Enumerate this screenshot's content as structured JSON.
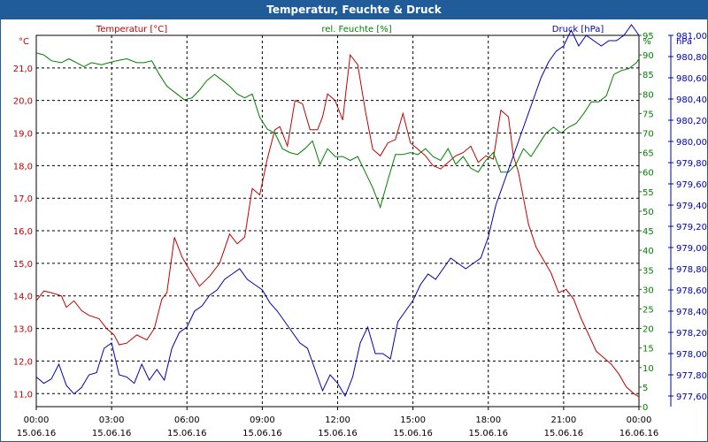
{
  "window": {
    "title": "Temperatur, Feuchte & Druck"
  },
  "colors": {
    "temperature": "#c00000",
    "humidity": "#008000",
    "pressure": "#0000b0",
    "titlebar": "#1f5c99",
    "grid": "#000000",
    "axis_text": "#000000"
  },
  "chart_data": {
    "type": "line",
    "title": "Temperatur, Feuchte & Druck",
    "x_start_label": [
      "00:00",
      "15.06.16"
    ],
    "x_ticks": [
      {
        "time": "00:00",
        "date": "15.06.16",
        "hour": 0
      },
      {
        "time": "03:00",
        "date": "15.06.16",
        "hour": 3
      },
      {
        "time": "06:00",
        "date": "15.06.16",
        "hour": 6
      },
      {
        "time": "09:00",
        "date": "15.06.16",
        "hour": 9
      },
      {
        "time": "12:00",
        "date": "15.06.16",
        "hour": 12
      },
      {
        "time": "15:00",
        "date": "15.06.16",
        "hour": 15
      },
      {
        "time": "18:00",
        "date": "15.06.16",
        "hour": 18
      },
      {
        "time": "21:00",
        "date": "15.06.16",
        "hour": 21
      },
      {
        "time": "00:00",
        "date": "16.06.16",
        "hour": 24
      }
    ],
    "xlim": [
      0,
      24
    ],
    "axes": {
      "temperature": {
        "unit": "°C",
        "label": "Temperatur [°C]",
        "ylim": [
          10.6,
          22.0
        ],
        "ticks": [
          "11,0",
          "12,0",
          "13,0",
          "14,0",
          "15,0",
          "16,0",
          "17,0",
          "18,0",
          "19,0",
          "20,0",
          "21,0"
        ],
        "tick_values": [
          11,
          12,
          13,
          14,
          15,
          16,
          17,
          18,
          19,
          20,
          21
        ]
      },
      "humidity": {
        "unit": "%",
        "label": "rel. Feuchte [%]",
        "ylim": [
          0,
          95
        ],
        "ticks": [
          "0",
          "5",
          "10",
          "15",
          "20",
          "25",
          "30",
          "35",
          "40",
          "45",
          "50",
          "55",
          "60",
          "65",
          "70",
          "75",
          "80",
          "85",
          "90",
          "95"
        ],
        "tick_values": [
          0,
          5,
          10,
          15,
          20,
          25,
          30,
          35,
          40,
          45,
          50,
          55,
          60,
          65,
          70,
          75,
          80,
          85,
          90,
          95
        ]
      },
      "pressure": {
        "unit": "hPa",
        "label": "Druck [hPa]",
        "ylim": [
          977.5,
          981.0
        ],
        "ticks": [
          "977,60",
          "977,80",
          "978,00",
          "978,20",
          "978,40",
          "978,60",
          "978,80",
          "979,00",
          "979,20",
          "979,40",
          "979,60",
          "979,80",
          "980,00",
          "980,20",
          "980,40",
          "980,60",
          "980,80",
          "981,00"
        ],
        "tick_values": [
          977.6,
          977.8,
          978.0,
          978.2,
          978.4,
          978.6,
          978.8,
          979.0,
          979.2,
          979.4,
          979.6,
          979.8,
          980.0,
          980.2,
          980.4,
          980.6,
          980.8,
          981.0
        ]
      }
    },
    "series": [
      {
        "name": "Temperatur [°C]",
        "axis": "temperature",
        "color": "#c00000",
        "x": [
          0,
          0.3,
          0.6,
          1.0,
          1.2,
          1.5,
          1.8,
          2.1,
          2.5,
          2.8,
          3.1,
          3.3,
          3.6,
          4.0,
          4.4,
          4.7,
          5.0,
          5.2,
          5.5,
          5.8,
          6.1,
          6.5,
          6.9,
          7.3,
          7.7,
          8.0,
          8.3,
          8.6,
          8.9,
          9.2,
          9.5,
          9.7,
          10.0,
          10.3,
          10.6,
          10.9,
          11.2,
          11.4,
          11.6,
          11.9,
          12.2,
          12.5,
          12.8,
          13.1,
          13.4,
          13.7,
          14.0,
          14.3,
          14.6,
          14.9,
          15.2,
          15.5,
          15.8,
          16.1,
          16.4,
          16.7,
          17.0,
          17.3,
          17.6,
          17.9,
          18.2,
          18.5,
          18.8,
          19.0,
          19.2,
          19.4,
          19.6,
          19.9,
          20.2,
          20.5,
          20.8,
          21.1,
          21.4,
          21.7,
          22.0,
          22.3,
          22.6,
          22.9,
          23.2,
          23.5,
          23.8,
          24.0
        ],
        "values": [
          13.85,
          14.15,
          14.1,
          14.0,
          13.65,
          13.85,
          13.55,
          13.4,
          13.3,
          13.0,
          12.8,
          12.5,
          12.55,
          12.8,
          12.65,
          13.0,
          13.9,
          14.1,
          15.8,
          15.2,
          14.8,
          14.3,
          14.6,
          15.0,
          15.9,
          15.6,
          15.8,
          17.3,
          17.1,
          18.2,
          19.1,
          19.2,
          18.6,
          20.0,
          19.9,
          19.1,
          19.1,
          19.5,
          20.2,
          20.0,
          19.4,
          21.4,
          21.1,
          19.7,
          18.5,
          18.3,
          18.7,
          18.8,
          19.6,
          18.7,
          18.5,
          18.3,
          18.0,
          17.9,
          18.1,
          18.3,
          18.4,
          18.6,
          18.1,
          18.3,
          18.2,
          19.7,
          19.5,
          18.3,
          17.8,
          17.0,
          16.2,
          15.5,
          15.1,
          14.7,
          14.1,
          14.2,
          13.9,
          13.3,
          12.8,
          12.3,
          12.1,
          11.9,
          11.6,
          11.2,
          11.0,
          10.9
        ]
      },
      {
        "name": "rel. Feuchte [%]",
        "axis": "humidity",
        "color": "#008000",
        "x": [
          0,
          0.3,
          0.6,
          1.0,
          1.3,
          1.6,
          1.9,
          2.2,
          2.6,
          2.9,
          3.2,
          3.6,
          4.0,
          4.3,
          4.6,
          4.9,
          5.2,
          5.6,
          5.9,
          6.2,
          6.5,
          6.8,
          7.1,
          7.4,
          7.7,
          8.0,
          8.3,
          8.6,
          8.9,
          9.2,
          9.5,
          9.8,
          10.1,
          10.4,
          10.7,
          11.0,
          11.3,
          11.6,
          11.9,
          12.2,
          12.5,
          12.8,
          13.1,
          13.4,
          13.7,
          14.0,
          14.3,
          14.6,
          14.9,
          15.2,
          15.5,
          15.8,
          16.1,
          16.4,
          16.7,
          17.0,
          17.3,
          17.6,
          17.9,
          18.2,
          18.5,
          18.8,
          19.1,
          19.4,
          19.7,
          20.0,
          20.3,
          20.6,
          20.9,
          21.2,
          21.5,
          21.8,
          22.1,
          22.4,
          22.7,
          23.0,
          23.3,
          23.6,
          23.9,
          24.0
        ],
        "values": [
          90.5,
          90.0,
          88.5,
          88.0,
          89.0,
          88.0,
          87.0,
          88.0,
          87.5,
          88.0,
          88.5,
          89.0,
          88.0,
          88.0,
          88.5,
          85.0,
          82.0,
          80.0,
          78.5,
          79.0,
          81.0,
          83.5,
          85.0,
          83.5,
          82.0,
          80.0,
          79.0,
          80.0,
          74.0,
          71.0,
          70.0,
          66.0,
          65.0,
          64.5,
          66.0,
          68.0,
          62.0,
          66.0,
          64.0,
          64.0,
          63.0,
          64.0,
          60.0,
          56.0,
          51.0,
          58.0,
          64.5,
          64.5,
          65.0,
          64.5,
          66.0,
          64.0,
          63.0,
          66.0,
          62.0,
          64.0,
          61.0,
          60.0,
          63.0,
          65.0,
          60.0,
          60.0,
          62.0,
          66.0,
          64.0,
          67.0,
          70.0,
          71.5,
          70.0,
          71.5,
          72.5,
          75.0,
          78.0,
          78.0,
          79.5,
          85.0,
          86.0,
          86.5,
          88.0,
          89.0
        ]
      },
      {
        "name": "Druck [hPa]",
        "axis": "pressure",
        "color": "#0000b0",
        "x": [
          0,
          0.3,
          0.6,
          0.9,
          1.2,
          1.5,
          1.8,
          2.1,
          2.4,
          2.7,
          3.0,
          3.3,
          3.6,
          3.9,
          4.2,
          4.5,
          4.8,
          5.1,
          5.4,
          5.7,
          6.0,
          6.3,
          6.6,
          6.9,
          7.2,
          7.5,
          7.8,
          8.1,
          8.4,
          8.7,
          9.0,
          9.3,
          9.6,
          9.9,
          10.2,
          10.5,
          10.8,
          11.1,
          11.4,
          11.7,
          12.0,
          12.3,
          12.6,
          12.9,
          13.2,
          13.5,
          13.8,
          14.1,
          14.4,
          14.7,
          15.0,
          15.3,
          15.6,
          15.9,
          16.2,
          16.5,
          16.8,
          17.1,
          17.4,
          17.7,
          18.0,
          18.3,
          18.6,
          18.9,
          19.2,
          19.5,
          19.8,
          20.1,
          20.4,
          20.7,
          21.0,
          21.3,
          21.6,
          21.9,
          22.2,
          22.5,
          22.8,
          23.1,
          23.4,
          23.7,
          24.0
        ],
        "values": [
          977.78,
          977.72,
          977.76,
          977.9,
          977.7,
          977.62,
          977.68,
          977.8,
          977.82,
          978.05,
          978.1,
          977.8,
          977.78,
          977.72,
          977.9,
          977.75,
          977.85,
          977.75,
          978.05,
          978.2,
          978.25,
          978.4,
          978.45,
          978.55,
          978.6,
          978.7,
          978.75,
          978.8,
          978.7,
          978.65,
          978.6,
          978.48,
          978.4,
          978.3,
          978.2,
          978.1,
          978.05,
          977.85,
          977.65,
          977.8,
          977.72,
          977.6,
          977.78,
          978.1,
          978.25,
          978.0,
          978.0,
          977.95,
          978.3,
          978.4,
          978.5,
          978.65,
          978.75,
          978.7,
          978.8,
          978.9,
          978.85,
          978.8,
          978.85,
          978.9,
          979.1,
          979.4,
          979.6,
          979.8,
          980.0,
          980.2,
          980.4,
          980.6,
          980.75,
          980.85,
          980.9,
          981.05,
          980.9,
          981.0,
          980.95,
          980.9,
          980.95,
          980.95,
          981.0,
          981.1,
          981.0
        ]
      }
    ]
  }
}
